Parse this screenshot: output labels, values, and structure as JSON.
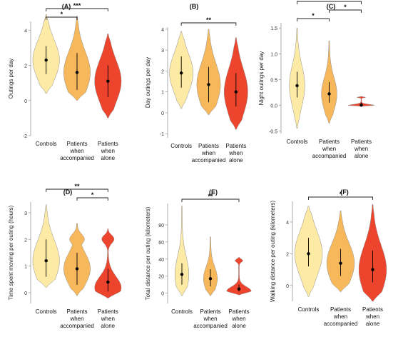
{
  "figure": {
    "colors": {
      "controls": "#fde9a0",
      "accompanied": "#f7b553",
      "alone": "#ec3a22",
      "line": "#000000",
      "axis": "#555555"
    },
    "categories": [
      "Controls",
      "Patients when accompanied",
      "Patients when alone"
    ]
  },
  "chart_data": [
    {
      "panel": "(A)",
      "type": "violin",
      "ylabel": "Outings per day",
      "ylim": [
        -2,
        4.5
      ],
      "yticks": [
        -2,
        0,
        2,
        4
      ],
      "categories": [
        [
          "Controls"
        ],
        [
          "Patients",
          "when",
          "accompanied"
        ],
        [
          "Patients",
          "when",
          "alone"
        ]
      ],
      "series": [
        {
          "median": 2.3,
          "q1": 1.5,
          "q3": 3.1,
          "min": 0.4,
          "max": 4.9,
          "shape": "unimodal"
        },
        {
          "median": 1.6,
          "q1": 0.6,
          "q3": 2.7,
          "min": 0.0,
          "max": 4.8,
          "shape": "unimodal"
        },
        {
          "median": 1.1,
          "q1": 0.2,
          "q3": 2.0,
          "min": -1.0,
          "max": 3.8,
          "shape": "unimodal"
        }
      ],
      "significance": [
        {
          "from": 0,
          "to": 1,
          "label": "*"
        },
        {
          "from": 0,
          "to": 2,
          "label": "***"
        }
      ]
    },
    {
      "panel": "(B)",
      "type": "violin",
      "ylabel": "Day outings per day",
      "ylim": [
        -1.2,
        4.1
      ],
      "yticks": [
        -1,
        0,
        1,
        2,
        3,
        4
      ],
      "categories": [
        [
          "Controls"
        ],
        [
          "Patients",
          "when",
          "accompanied"
        ],
        [
          "Patients",
          "when",
          "alone"
        ]
      ],
      "series": [
        {
          "median": 1.9,
          "q1": 1.2,
          "q3": 2.7,
          "min": 0.2,
          "max": 3.9,
          "shape": "unimodal"
        },
        {
          "median": 1.35,
          "q1": 0.5,
          "q3": 2.2,
          "min": -0.1,
          "max": 4.0,
          "shape": "unimodal"
        },
        {
          "median": 1.0,
          "q1": 0.3,
          "q3": 1.9,
          "min": -0.8,
          "max": 3.6,
          "shape": "unimodal"
        }
      ],
      "significance": [
        {
          "from": 0,
          "to": 2,
          "label": "**"
        }
      ]
    },
    {
      "panel": "(C)",
      "type": "violin",
      "ylabel": "Night outings per day",
      "ylim": [
        -0.55,
        1.6
      ],
      "yticks": [
        -0.5,
        0.0,
        0.5,
        1.0,
        1.5
      ],
      "ytickLabels": [
        "-0.5",
        "0.0",
        "0.5",
        "1.0",
        "1.5"
      ],
      "categories": [
        [
          "Controls"
        ],
        [
          "Patients",
          "when",
          "accompanied"
        ],
        [
          "Patients",
          "when",
          "alone"
        ]
      ],
      "series": [
        {
          "median": 0.38,
          "q1": 0.15,
          "q3": 0.65,
          "min": -0.45,
          "max": 1.5,
          "shape": "narrow"
        },
        {
          "median": 0.22,
          "q1": 0.05,
          "q3": 0.45,
          "min": -0.35,
          "max": 1.25,
          "shape": "narrow"
        },
        {
          "median": 0.0,
          "q1": 0.0,
          "q3": 0.05,
          "min": -0.02,
          "max": 0.17,
          "shape": "flat"
        }
      ],
      "significance": [
        {
          "from": 0,
          "to": 1,
          "label": "*"
        },
        {
          "from": 1,
          "to": 2,
          "label": "*"
        },
        {
          "from": 0,
          "to": 2,
          "label": "***"
        }
      ]
    },
    {
      "panel": "(D)",
      "type": "violin",
      "ylabel": "Time spent moving per outing (hours)",
      "ylim": [
        -0.4,
        3.4
      ],
      "yticks": [
        0,
        1,
        2,
        3
      ],
      "categories": [
        [
          "Controls"
        ],
        [
          "Patients",
          "when",
          "accompanied"
        ],
        [
          "Patients",
          "when",
          "alone"
        ]
      ],
      "series": [
        {
          "median": 1.2,
          "q1": 0.6,
          "q3": 2.0,
          "min": 0.2,
          "max": 3.3,
          "shape": "unimodal"
        },
        {
          "median": 0.9,
          "q1": 0.3,
          "q3": 1.5,
          "min": -0.1,
          "max": 2.6,
          "shape": "bimodal"
        },
        {
          "median": 0.4,
          "q1": 0.05,
          "q3": 0.9,
          "min": -0.2,
          "max": 2.4,
          "shape": "bimodal_low"
        }
      ],
      "significance": [
        {
          "from": 1,
          "to": 2,
          "label": "*"
        },
        {
          "from": 0,
          "to": 2,
          "label": "**"
        }
      ]
    },
    {
      "panel": "(E)",
      "type": "violin",
      "ylabel": "Total distance per outing (kilometers)",
      "ylim": [
        -12,
        105
      ],
      "yticks": [
        0,
        20,
        40,
        60,
        80
      ],
      "categories": [
        [
          "Controls"
        ],
        [
          "Patients",
          "when",
          "accompanied"
        ],
        [
          "Patients",
          "when",
          "alone"
        ]
      ],
      "series": [
        {
          "median": 22,
          "q1": 10,
          "q3": 35,
          "min": -3,
          "max": 102,
          "shape": "narrow"
        },
        {
          "median": 17,
          "q1": 8,
          "q3": 28,
          "min": -3,
          "max": 66,
          "shape": "narrow"
        },
        {
          "median": 5,
          "q1": 2,
          "q3": 10,
          "min": -2,
          "max": 42,
          "shape": "flat"
        }
      ],
      "significance": [
        {
          "from": 0,
          "to": 2,
          "label": "**"
        }
      ]
    },
    {
      "panel": "(F)",
      "type": "violin",
      "ylabel": "Walking distance per outing (kilometers)",
      "ylim": [
        -1,
        5.3
      ],
      "yticks": [
        0,
        2,
        4
      ],
      "categories": [
        [
          "Controls"
        ],
        [
          "Patients",
          "when",
          "accompanied"
        ],
        [
          "Patients",
          "when",
          "alone"
        ]
      ],
      "series": [
        {
          "median": 2.0,
          "q1": 1.2,
          "q3": 3.0,
          "min": -0.7,
          "max": 5.0,
          "shape": "unimodal"
        },
        {
          "median": 1.4,
          "q1": 0.6,
          "q3": 2.3,
          "min": -0.4,
          "max": 4.7,
          "shape": "unimodal"
        },
        {
          "median": 1.0,
          "q1": 0.2,
          "q3": 2.2,
          "min": -1.0,
          "max": 5.1,
          "shape": "unimodal"
        }
      ],
      "significance": [
        {
          "from": 0,
          "to": 2,
          "label": "*"
        }
      ]
    }
  ]
}
